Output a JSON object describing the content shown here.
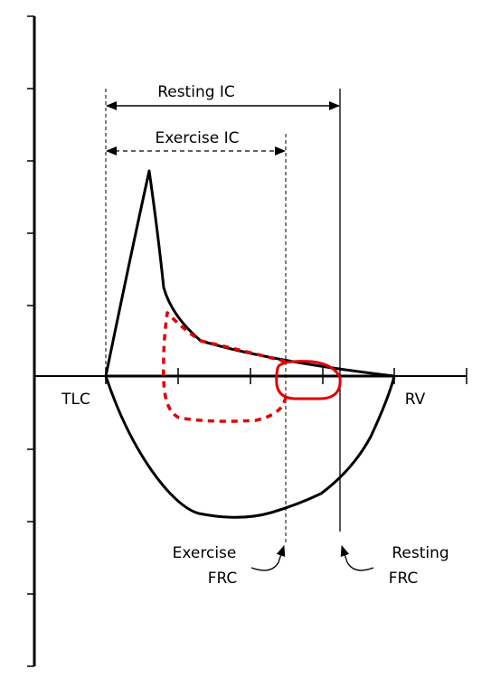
{
  "labels": {
    "resting_ic": "Resting IC",
    "exercise_ic": "Exercise IC",
    "tlc": "TLC",
    "rv": "RV",
    "exercise_frc_line1": "Exercise",
    "exercise_frc_line2": "FRC",
    "resting_frc_line1": "Resting",
    "resting_frc_line2": "FRC"
  },
  "colors": {
    "curve": "#000000",
    "exercise_loop": "#e00000",
    "background": "#ffffff"
  }
}
